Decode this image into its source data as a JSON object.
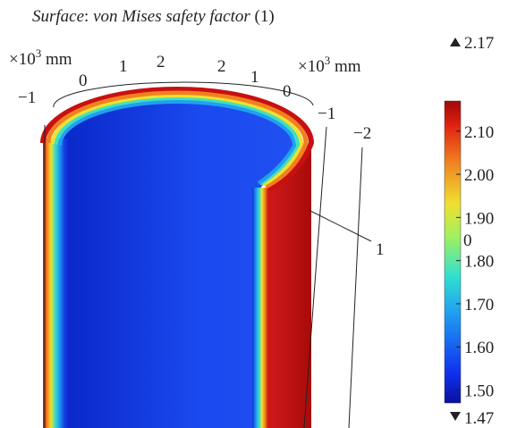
{
  "title": [
    "Surface",
    ": ",
    "von Mises safety factor",
    " (1)"
  ],
  "axes": {
    "x": {
      "unit": {
        "prefix": "×10",
        "exp": "3",
        "suffix": " mm"
      },
      "ticks": [
        "−1",
        "0",
        "1",
        "2"
      ]
    },
    "y": {
      "unit": {
        "prefix": "×10",
        "exp": "3",
        "suffix": " mm"
      },
      "ticks": [
        "2",
        "1",
        "0",
        "−1",
        "−2"
      ]
    },
    "z": {
      "ticks": [
        "1",
        "0"
      ]
    }
  },
  "colorbar": {
    "range": [
      1.47,
      2.17
    ],
    "max_label": "2.17",
    "min_label": "1.47",
    "ticks": [
      {
        "value": 1.5,
        "label": "1.50"
      },
      {
        "value": 1.6,
        "label": "1.60"
      },
      {
        "value": 1.7,
        "label": "1.70"
      },
      {
        "value": 1.8,
        "label": "1.80"
      },
      {
        "value": 1.9,
        "label": "1.90"
      },
      {
        "value": 2.0,
        "label": "2.00"
      },
      {
        "value": 2.1,
        "label": "2.10"
      }
    ]
  }
}
